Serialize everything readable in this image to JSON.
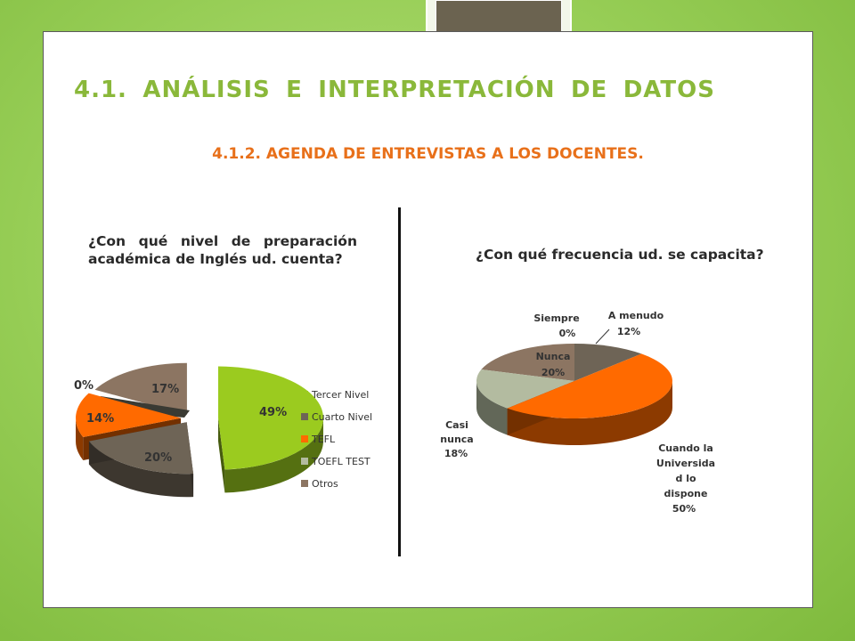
{
  "title_words": [
    "4.1.",
    "ANÁLISIS",
    "E",
    "INTERPRETACIÓN",
    "DE",
    "DATOS"
  ],
  "subtitle": "4.1.2. AGENDA DE ENTREVISTAS A LOS DOCENTES.",
  "question_left": "¿Con qué nivel de preparación académica de Inglés ud. cuenta?",
  "question_right": "¿Con qué frecuencia ud. se capacita?",
  "colors": {
    "green": "#9bcb1f",
    "gray": "#6e6456",
    "orange": "#ff6a00",
    "sage": "#b3bba0",
    "brown": "#8c7562",
    "title": "#8ab83a",
    "subtitle": "#e8701a"
  },
  "chart_data": [
    {
      "type": "pie",
      "title": "",
      "legend_position": "right",
      "series": [
        {
          "label": "Tercer Nivel",
          "value": 49,
          "display": "49%"
        },
        {
          "label": "Cuarto Nivel",
          "value": 20,
          "display": "20%"
        },
        {
          "label": "TEFL",
          "value": 14,
          "display": "14%"
        },
        {
          "label": "TOEFL TEST",
          "value": 0,
          "display": "0%"
        },
        {
          "label": "Otros",
          "value": 17,
          "display": "17%"
        }
      ]
    },
    {
      "type": "pie",
      "title": "",
      "legend_position": "none",
      "series": [
        {
          "label": "Siempre",
          "value": 0,
          "display": "0%"
        },
        {
          "label": "A menudo",
          "value": 12,
          "display": "12%"
        },
        {
          "label": "Cuando la Universida d lo dispone",
          "value": 50,
          "display": "50%"
        },
        {
          "label": "Casi nunca",
          "value": 18,
          "display": "18%"
        },
        {
          "label": "Nunca",
          "value": 20,
          "display": "20%"
        }
      ]
    }
  ]
}
